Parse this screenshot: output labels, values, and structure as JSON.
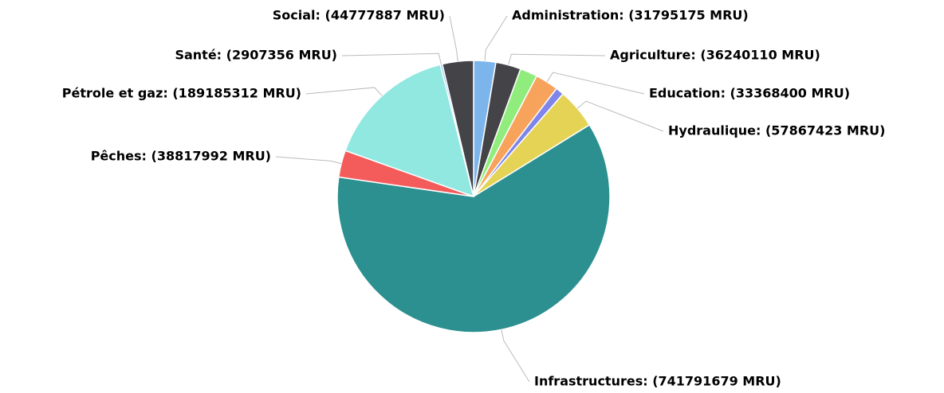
{
  "chart_data": {
    "type": "pie",
    "labels": [
      "Administration: (31795175 MRU)",
      "Agriculture: (36240110 MRU)",
      null,
      "Education: (33368400 MRU)",
      null,
      "Hydraulique: (57867423 MRU)",
      "Infrastructures: (741791679 MRU)",
      "Pêches: (38817992 MRU)",
      "Pétrole et gaz: (189185312 MRU)",
      "Santé: (2907356 MRU)",
      "Social: (44777887 MRU)"
    ],
    "values": [
      31795175,
      36240110,
      25000000,
      33368400,
      12000000,
      57867423,
      741791679,
      38817992,
      189185312,
      2907356,
      44777887
    ],
    "colors": [
      "#7cb5ec",
      "#434348",
      "#90ed7d",
      "#f7a35c",
      "#8085e9",
      "#e4d354",
      "#2b908f",
      "#f45b5b",
      "#91e8e1",
      "#7cb5ec",
      "#434348"
    ]
  }
}
